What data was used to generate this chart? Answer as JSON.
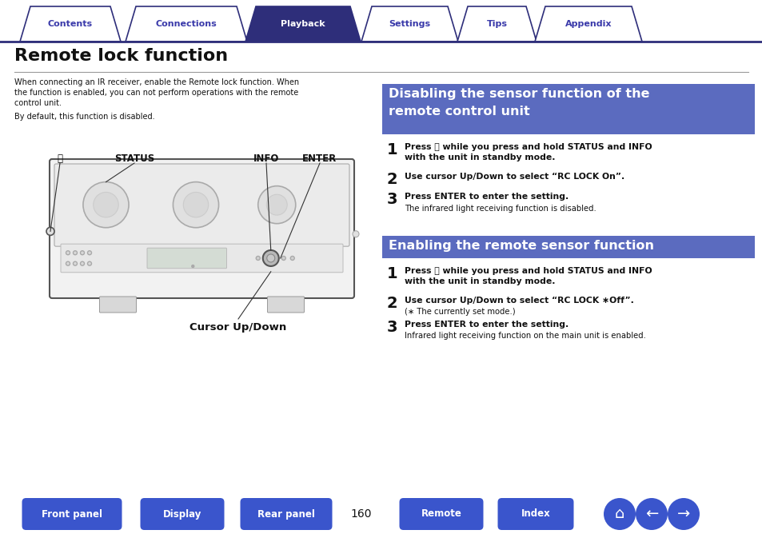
{
  "bg_color": "#ffffff",
  "nav_tab_dark": "#2e2e7a",
  "nav_tab_light_bg": "#ffffff",
  "nav_tab_light_text": "#3a3aaa",
  "nav_tab_active_bg": "#2e2e7a",
  "nav_tab_active_text": "#ffffff",
  "tabs": [
    "Contents",
    "Connections",
    "Playback",
    "Settings",
    "Tips",
    "Appendix"
  ],
  "active_tab_index": 2,
  "page_title": "Remote lock function",
  "intro_line1": "When connecting an IR receiver, enable the Remote lock function. When",
  "intro_line2": "the function is enabled, you can not perform operations with the remote",
  "intro_line3": "control unit.",
  "intro_line4": "By default, this function is disabled.",
  "section1_title_line1": "Disabling the sensor function of the",
  "section1_title_line2": "remote control unit",
  "section1_color": "#5b6bbf",
  "section2_title": "Enabling the remote sensor function",
  "section2_color": "#5b6bbf",
  "s1_step1_bold": "Press ⏻ while you press and hold STATUS and INFO",
  "s1_step1_bold2": "with the unit in standby mode.",
  "s1_step2_bold": "Use cursor Up/Down to select “RC LOCK On”.",
  "s1_step3_bold": "Press ENTER to enter the setting.",
  "s1_step3_normal": "The infrared light receiving function is disabled.",
  "s2_step1_bold": "Press ⏻ while you press and hold STATUS and INFO",
  "s2_step1_bold2": "with the unit in standby mode.",
  "s2_step2_bold": "Use cursor Up/Down to select “RC LOCK ∗Off”.",
  "s2_step2_normal": "(∗ The currently set mode.)",
  "s2_step3_bold": "Press ENTER to enter the setting.",
  "s2_step3_normal": "Infrared light receiving function on the main unit is enabled.",
  "bottom_btn_color": "#3a55cc",
  "page_number": "160",
  "bottom_buttons_left": [
    "Front panel",
    "Display",
    "Rear panel"
  ],
  "bottom_buttons_right": [
    "Remote",
    "Index"
  ]
}
